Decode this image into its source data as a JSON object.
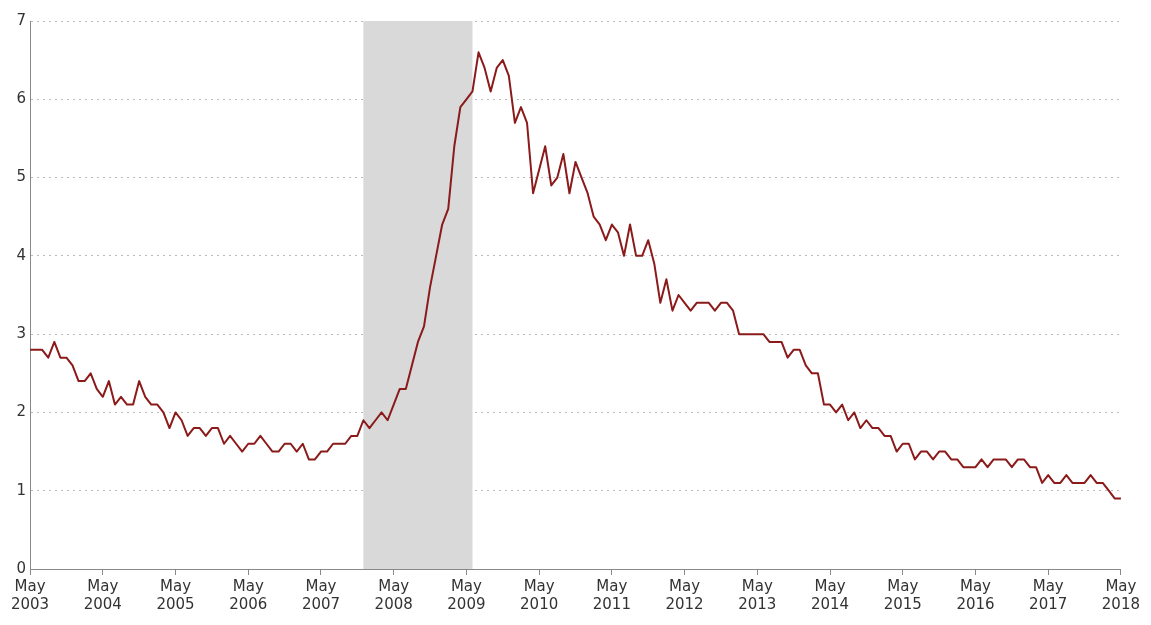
{
  "chart_data": {
    "type": "line",
    "x": [
      "2003-05",
      "2003-06",
      "2003-07",
      "2003-08",
      "2003-09",
      "2003-10",
      "2003-11",
      "2003-12",
      "2004-01",
      "2004-02",
      "2004-03",
      "2004-04",
      "2004-05",
      "2004-06",
      "2004-07",
      "2004-08",
      "2004-09",
      "2004-10",
      "2004-11",
      "2004-12",
      "2005-01",
      "2005-02",
      "2005-03",
      "2005-04",
      "2005-05",
      "2005-06",
      "2005-07",
      "2005-08",
      "2005-09",
      "2005-10",
      "2005-11",
      "2005-12",
      "2006-01",
      "2006-02",
      "2006-03",
      "2006-04",
      "2006-05",
      "2006-06",
      "2006-07",
      "2006-08",
      "2006-09",
      "2006-10",
      "2006-11",
      "2006-12",
      "2007-01",
      "2007-02",
      "2007-03",
      "2007-04",
      "2007-05",
      "2007-06",
      "2007-07",
      "2007-08",
      "2007-09",
      "2007-10",
      "2007-11",
      "2007-12",
      "2008-01",
      "2008-02",
      "2008-03",
      "2008-04",
      "2008-05",
      "2008-06",
      "2008-07",
      "2008-08",
      "2008-09",
      "2008-10",
      "2008-11",
      "2008-12",
      "2009-01",
      "2009-02",
      "2009-03",
      "2009-04",
      "2009-05",
      "2009-06",
      "2009-07",
      "2009-08",
      "2009-09",
      "2009-10",
      "2009-11",
      "2009-12",
      "2010-01",
      "2010-02",
      "2010-03",
      "2010-04",
      "2010-05",
      "2010-06",
      "2010-07",
      "2010-08",
      "2010-09",
      "2010-10",
      "2010-11",
      "2010-12",
      "2011-01",
      "2011-02",
      "2011-03",
      "2011-04",
      "2011-05",
      "2011-06",
      "2011-07",
      "2011-08",
      "2011-09",
      "2011-10",
      "2011-11",
      "2011-12",
      "2012-01",
      "2012-02",
      "2012-03",
      "2012-04",
      "2012-05",
      "2012-06",
      "2012-07",
      "2012-08",
      "2012-09",
      "2012-10",
      "2012-11",
      "2012-12",
      "2013-01",
      "2013-02",
      "2013-03",
      "2013-04",
      "2013-05",
      "2013-06",
      "2013-07",
      "2013-08",
      "2013-09",
      "2013-10",
      "2013-11",
      "2013-12",
      "2014-01",
      "2014-02",
      "2014-03",
      "2014-04",
      "2014-05",
      "2014-06",
      "2014-07",
      "2014-08",
      "2014-09",
      "2014-10",
      "2014-11",
      "2014-12",
      "2015-01",
      "2015-02",
      "2015-03",
      "2015-04",
      "2015-05",
      "2015-06",
      "2015-07",
      "2015-08",
      "2015-09",
      "2015-10",
      "2015-11",
      "2015-12",
      "2016-01",
      "2016-02",
      "2016-03",
      "2016-04",
      "2016-05",
      "2016-06",
      "2016-07",
      "2016-08",
      "2016-09",
      "2016-10",
      "2016-11",
      "2016-12",
      "2017-01",
      "2017-02",
      "2017-03",
      "2017-04",
      "2017-05",
      "2017-06",
      "2017-07",
      "2017-08",
      "2017-09",
      "2017-10",
      "2017-11",
      "2017-12",
      "2018-01",
      "2018-02",
      "2018-03",
      "2018-04",
      "2018-05"
    ],
    "series": [
      {
        "color": "#8b1a1a",
        "values": [
          2.8,
          2.8,
          2.8,
          2.7,
          2.9,
          2.7,
          2.7,
          2.6,
          2.4,
          2.4,
          2.5,
          2.3,
          2.2,
          2.4,
          2.1,
          2.2,
          2.1,
          2.1,
          2.4,
          2.2,
          2.1,
          2.1,
          2.0,
          1.8,
          2.0,
          1.9,
          1.7,
          1.8,
          1.8,
          1.7,
          1.8,
          1.8,
          1.6,
          1.7,
          1.6,
          1.5,
          1.6,
          1.6,
          1.7,
          1.6,
          1.5,
          1.5,
          1.6,
          1.6,
          1.5,
          1.6,
          1.4,
          1.4,
          1.5,
          1.5,
          1.6,
          1.6,
          1.6,
          1.7,
          1.7,
          1.9,
          1.8,
          1.9,
          2.0,
          1.9,
          2.1,
          2.3,
          2.3,
          2.6,
          2.9,
          3.1,
          3.6,
          4.0,
          4.4,
          4.6,
          5.4,
          5.9,
          6.0,
          6.1,
          6.6,
          6.4,
          6.1,
          6.4,
          6.5,
          6.3,
          5.7,
          5.9,
          5.7,
          4.8,
          5.1,
          5.4,
          4.9,
          5.0,
          5.3,
          4.8,
          5.2,
          5.0,
          4.8,
          4.5,
          4.4,
          4.2,
          4.4,
          4.3,
          4.0,
          4.4,
          4.0,
          4.0,
          4.2,
          3.9,
          3.4,
          3.7,
          3.3,
          3.5,
          3.4,
          3.3,
          3.4,
          3.4,
          3.4,
          3.3,
          3.4,
          3.4,
          3.3,
          3.0,
          3.0,
          3.0,
          3.0,
          3.0,
          2.9,
          2.9,
          2.9,
          2.7,
          2.8,
          2.8,
          2.6,
          2.5,
          2.5,
          2.1,
          2.1,
          2.0,
          2.1,
          1.9,
          2.0,
          1.8,
          1.9,
          1.8,
          1.8,
          1.7,
          1.7,
          1.5,
          1.6,
          1.6,
          1.4,
          1.5,
          1.5,
          1.4,
          1.5,
          1.5,
          1.4,
          1.4,
          1.3,
          1.3,
          1.3,
          1.4,
          1.3,
          1.4,
          1.4,
          1.4,
          1.3,
          1.4,
          1.4,
          1.3,
          1.3,
          1.1,
          1.2,
          1.1,
          1.1,
          1.2,
          1.1,
          1.1,
          1.1,
          1.2,
          1.1,
          1.1,
          1.0,
          0.9,
          0.9
        ]
      }
    ],
    "xlim": [
      "2003-05",
      "2018-05"
    ],
    "xticks": [
      {
        "value": "2003-05",
        "label": "May 2003"
      },
      {
        "value": "2004-05",
        "label": "May 2004"
      },
      {
        "value": "2005-05",
        "label": "May 2005"
      },
      {
        "value": "2006-05",
        "label": "May 2006"
      },
      {
        "value": "2007-05",
        "label": "May 2007"
      },
      {
        "value": "2008-05",
        "label": "May 2008"
      },
      {
        "value": "2009-05",
        "label": "May 2009"
      },
      {
        "value": "2010-05",
        "label": "May 2010"
      },
      {
        "value": "2011-05",
        "label": "May 2011"
      },
      {
        "value": "2012-05",
        "label": "May 2012"
      },
      {
        "value": "2013-05",
        "label": "May 2013"
      },
      {
        "value": "2014-05",
        "label": "May 2014"
      },
      {
        "value": "2015-05",
        "label": "May 2015"
      },
      {
        "value": "2016-05",
        "label": "May 2016"
      },
      {
        "value": "2017-05",
        "label": "May 2017"
      },
      {
        "value": "2018-05",
        "label": "May 2018"
      }
    ],
    "ylim": [
      0,
      7
    ],
    "yticks": [
      0,
      1,
      2,
      3,
      4,
      5,
      6,
      7
    ],
    "bands": [
      {
        "axis": "x",
        "from": "2007-12",
        "to": "2009-06",
        "color": "#d9d9d9"
      }
    ],
    "grid": "y",
    "legend": false,
    "marker": "none",
    "line_style": "solid"
  }
}
